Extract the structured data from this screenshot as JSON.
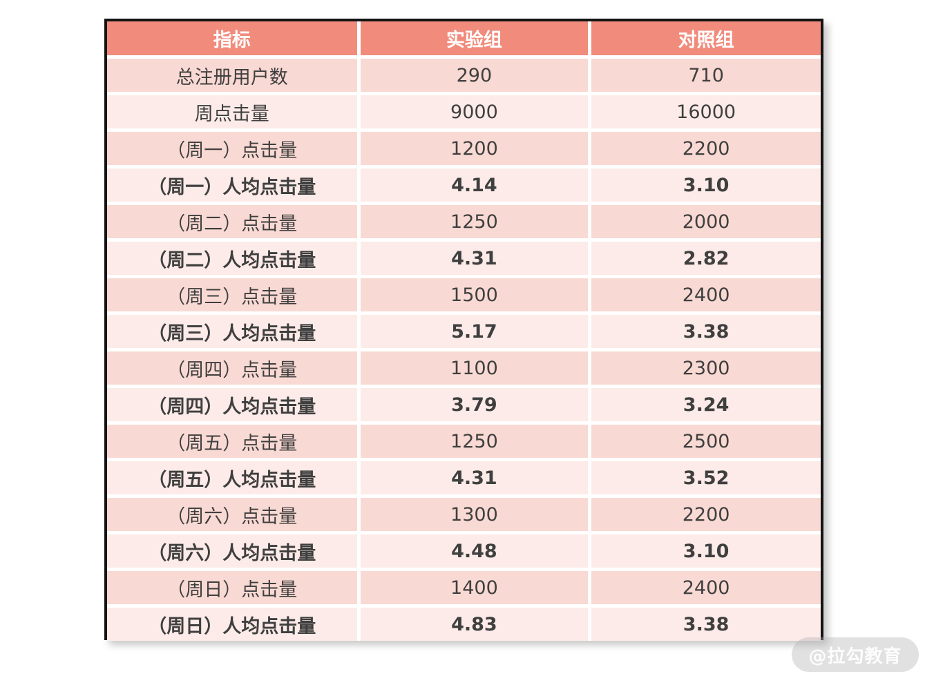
{
  "chart_data": {
    "type": "table",
    "columns": [
      "指标",
      "实验组",
      "对照组"
    ],
    "rows": [
      {
        "label": "总注册用户数",
        "experimental": "290",
        "control": "710",
        "emphasis": false
      },
      {
        "label": "周点击量",
        "experimental": "9000",
        "control": "16000",
        "emphasis": false
      },
      {
        "label": "（周一）点击量",
        "experimental": "1200",
        "control": "2200",
        "emphasis": false
      },
      {
        "label": "（周一）人均点击量",
        "experimental": "4.14",
        "control": "3.10",
        "emphasis": true
      },
      {
        "label": "（周二）点击量",
        "experimental": "1250",
        "control": "2000",
        "emphasis": false
      },
      {
        "label": "（周二）人均点击量",
        "experimental": "4.31",
        "control": "2.82",
        "emphasis": true
      },
      {
        "label": "（周三）点击量",
        "experimental": "1500",
        "control": "2400",
        "emphasis": false
      },
      {
        "label": "（周三）人均点击量",
        "experimental": "5.17",
        "control": "3.38",
        "emphasis": true
      },
      {
        "label": "（周四）点击量",
        "experimental": "1100",
        "control": "2300",
        "emphasis": false
      },
      {
        "label": "（周四）人均点击量",
        "experimental": "3.79",
        "control": "3.24",
        "emphasis": true
      },
      {
        "label": "（周五）点击量",
        "experimental": "1250",
        "control": "2500",
        "emphasis": false
      },
      {
        "label": "（周五）人均点击量",
        "experimental": "4.31",
        "control": "3.52",
        "emphasis": true
      },
      {
        "label": "（周六）点击量",
        "experimental": "1300",
        "control": "2200",
        "emphasis": false
      },
      {
        "label": "（周六）人均点击量",
        "experimental": "4.48",
        "control": "3.10",
        "emphasis": true
      },
      {
        "label": "（周日）点击量",
        "experimental": "1400",
        "control": "2400",
        "emphasis": false
      },
      {
        "label": "（周日）人均点击量",
        "experimental": "4.83",
        "control": "3.38",
        "emphasis": true
      }
    ]
  },
  "watermark": {
    "text": "@拉勾教育"
  },
  "colors": {
    "header_bg": "#f18b7c",
    "header_text": "#ffffff",
    "row_odd_bg": "#f9d9d3",
    "row_even_bg": "#fcebe8",
    "text": "#3f3f3f",
    "border": "#131313"
  }
}
